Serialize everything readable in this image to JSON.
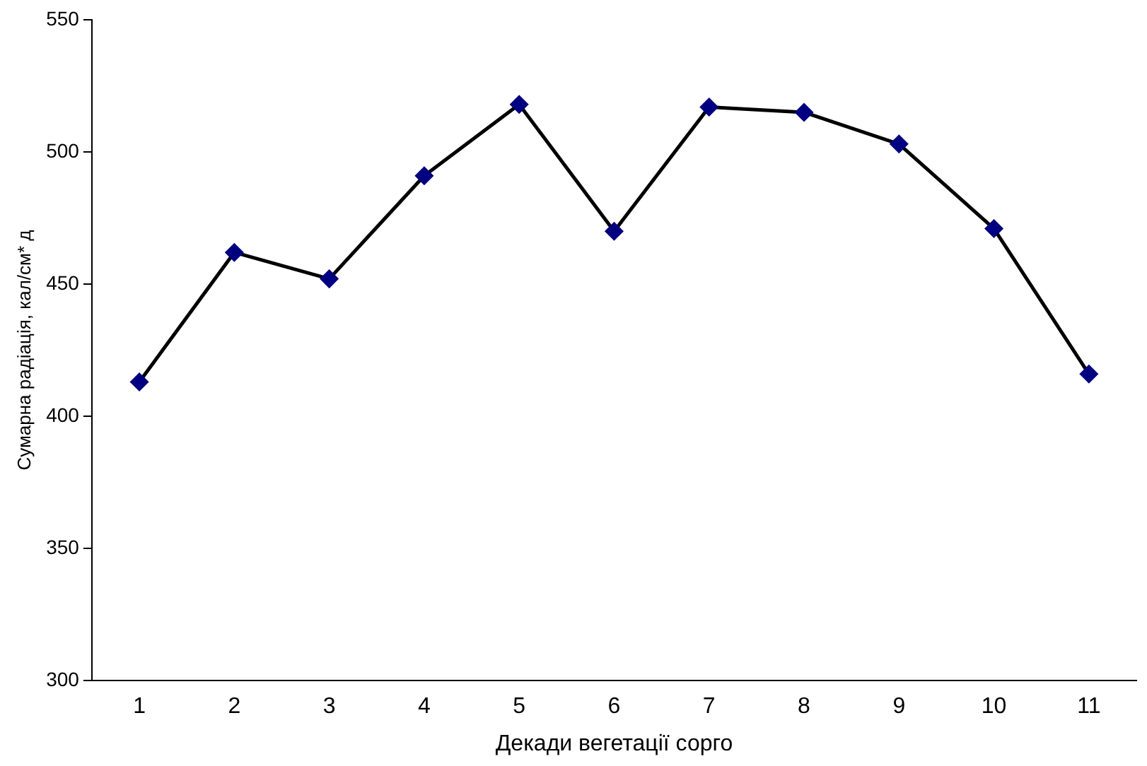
{
  "chart_data": {
    "type": "line",
    "xlabel": "Декади вегетації сорго",
    "ylabel": "Сумарна радіація, кал/см* д",
    "categories": [
      "1",
      "2",
      "3",
      "4",
      "5",
      "6",
      "7",
      "8",
      "9",
      "10",
      "11"
    ],
    "series": [
      {
        "color": "#000000",
        "colors": [
          "#000080",
          "#000080",
          "#000080",
          "#000080",
          "#000080",
          "#000080",
          "#000080",
          "#000080",
          "#000080",
          "#000080",
          "#000080"
        ],
        "values": [
          413,
          462,
          452,
          491,
          518,
          470,
          517,
          515,
          503,
          471,
          416
        ]
      }
    ],
    "ylim": [
      300,
      550
    ],
    "yticks": [
      300,
      350,
      400,
      450,
      500,
      550
    ],
    "grid": false,
    "legend": false,
    "marker": "diamond",
    "line_style": "solid"
  }
}
